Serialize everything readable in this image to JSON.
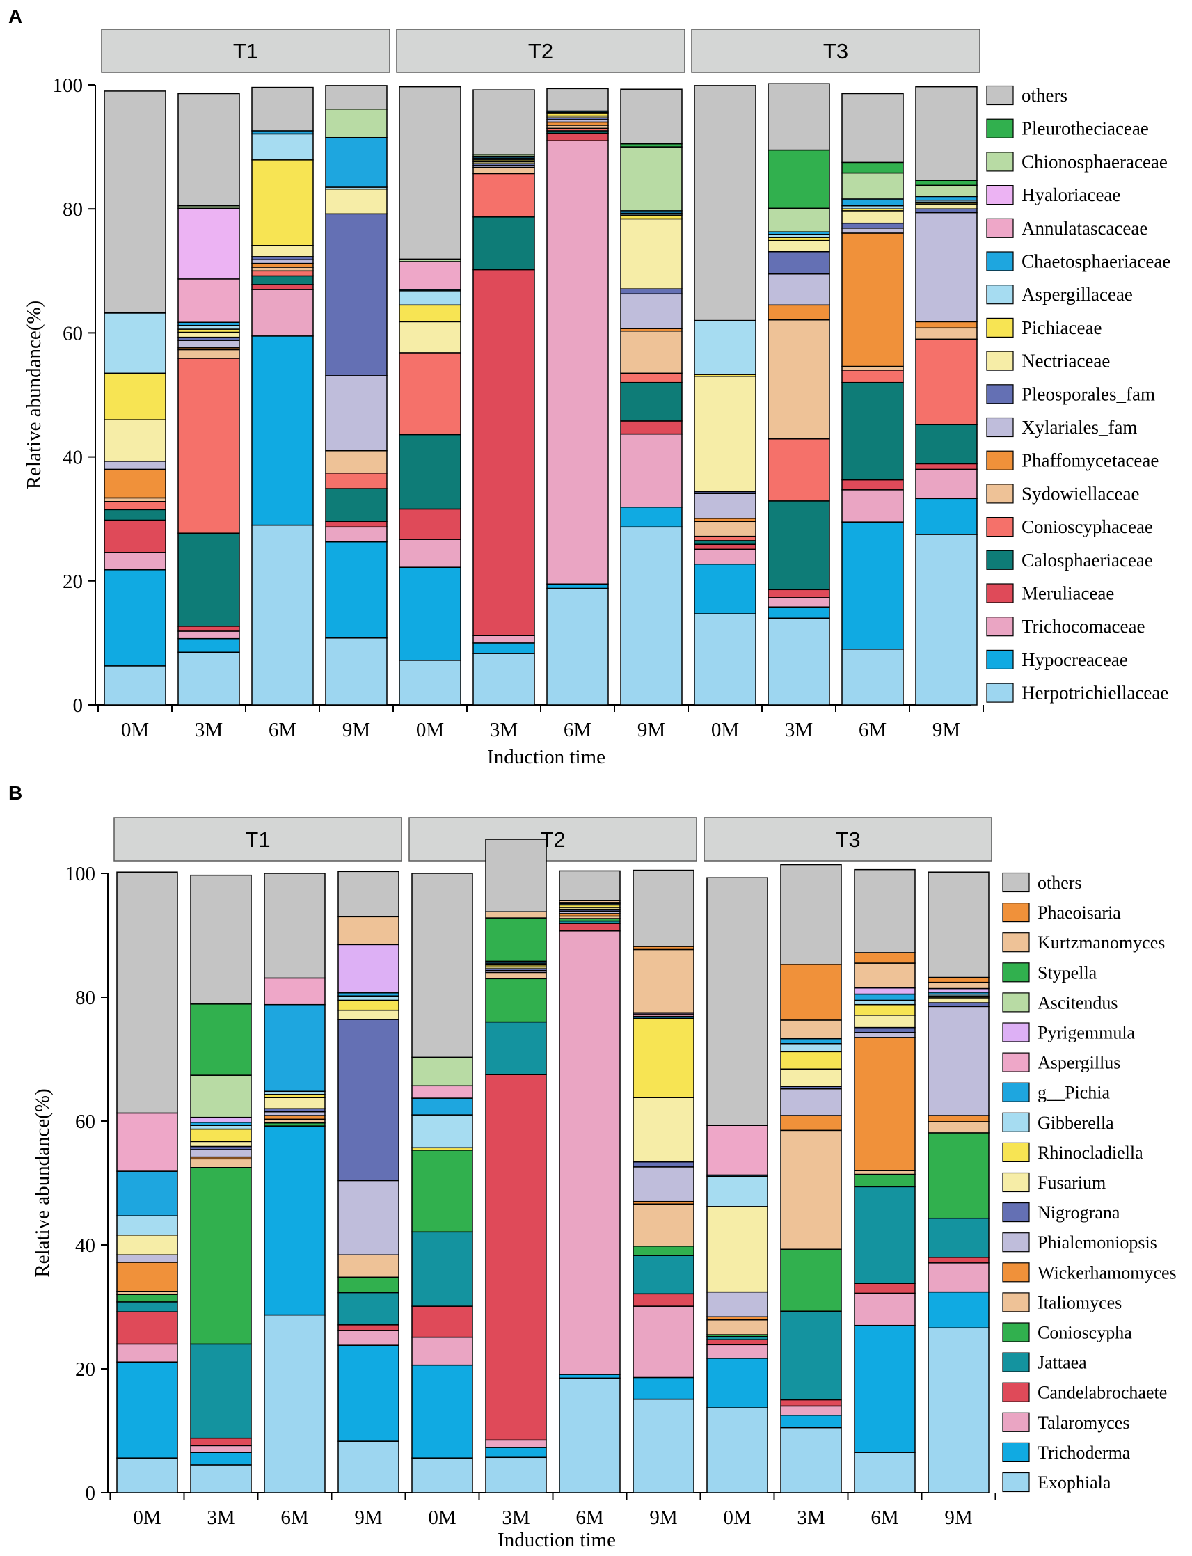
{
  "chart_data": [
    {
      "type": "bar",
      "stacked": true,
      "panel_label": "A",
      "ylabel": "Relative abundance(%)",
      "xlabel": "Induction time",
      "ylim": [
        0,
        100
      ],
      "yticks": [
        "0",
        "20",
        "40",
        "60",
        "80",
        "100"
      ],
      "groups": [
        "T1",
        "T2",
        "T3"
      ],
      "categories": [
        "0M",
        "3M",
        "6M",
        "9M",
        "0M",
        "3M",
        "6M",
        "9M",
        "0M",
        "3M",
        "6M",
        "9M"
      ],
      "legend_position": "right",
      "series": [
        {
          "name": "Herpotrichiellaceae",
          "color": "#9DD6F0",
          "values": [
            6.3,
            8.5,
            29,
            10.8,
            7.2,
            8.3,
            18.8,
            28.7,
            14.7,
            14,
            9,
            27.5
          ]
        },
        {
          "name": "Hypocreaceae",
          "color": "#10AAE2",
          "values": [
            15.5,
            2.2,
            30.5,
            15.5,
            15,
            1.7,
            0.7,
            3.2,
            8,
            1.8,
            20.5,
            5.8
          ]
        },
        {
          "name": "Trichocomaceae",
          "color": "#EAA5C3",
          "values": [
            2.8,
            1.2,
            7.5,
            2.4,
            4.5,
            1.2,
            71.5,
            11.8,
            2.4,
            1.5,
            5.2,
            4.7
          ]
        },
        {
          "name": "Meruliaceae",
          "color": "#DF4A59",
          "values": [
            5.2,
            0.8,
            0.8,
            0.9,
            4.9,
            59,
            1.2,
            2.1,
            0.8,
            1.3,
            1.6,
            0.9
          ]
        },
        {
          "name": "Calosphaeriaceae",
          "color": "#0E7C77",
          "values": [
            1.7,
            15,
            1.4,
            5.3,
            12,
            8.5,
            0.4,
            6.2,
            0.6,
            14.3,
            15.7,
            6.3
          ]
        },
        {
          "name": "Conioscyphaceae",
          "color": "#F5716A",
          "values": [
            1.3,
            28.2,
            0.8,
            2.5,
            13.2,
            7,
            0.4,
            1.5,
            0.7,
            10,
            2,
            13.8
          ]
        },
        {
          "name": "Sydowiellaceae",
          "color": "#EEC297",
          "values": [
            0.6,
            1.4,
            0.6,
            3.6,
            0,
            1,
            0.5,
            6.8,
            2.4,
            19.2,
            0.6,
            1.8
          ]
        },
        {
          "name": "Phaffomycetaceae",
          "color": "#F0913A",
          "values": [
            4.6,
            0.3,
            0.6,
            0,
            0,
            0,
            0.5,
            0.4,
            0.5,
            2.4,
            21.5,
            1
          ]
        },
        {
          "name": "Xylariales_fam",
          "color": "#BFBDDB",
          "values": [
            1.3,
            1.2,
            0.6,
            12.1,
            0,
            0.3,
            0.4,
            5.6,
            4,
            5,
            0.8,
            17.6
          ]
        },
        {
          "name": "Pleosporales_fam",
          "color": "#6470B4",
          "values": [
            0,
            0.5,
            0.5,
            26.1,
            0,
            0.3,
            0.3,
            0.8,
            0.3,
            3.6,
            0.8,
            0.6
          ]
        },
        {
          "name": "Nectriaceae",
          "color": "#F6EDA7",
          "values": [
            6.7,
            0.8,
            1.8,
            4,
            5,
            0.3,
            0.3,
            11.3,
            18.6,
            1.8,
            2,
            0.8
          ]
        },
        {
          "name": "Pichiaceae",
          "color": "#F7E453",
          "values": [
            7.5,
            0.5,
            13.8,
            0,
            2.7,
            0.3,
            0.4,
            0.6,
            0.3,
            0.5,
            0.3,
            0.3
          ]
        },
        {
          "name": "Aspergillaceae",
          "color": "#A6DCF1",
          "values": [
            9.7,
            0.6,
            4.2,
            0.3,
            2.3,
            0.3,
            0.2,
            0.3,
            8.7,
            0.5,
            0.5,
            0.3
          ]
        },
        {
          "name": "Chaetosphaeriaceae",
          "color": "#1EA6DF",
          "values": [
            0.1,
            0.5,
            0.5,
            8,
            0.2,
            0.3,
            0.2,
            0.4,
            0,
            0.4,
            1.1,
            0.6
          ]
        },
        {
          "name": "Annulatascaceae",
          "color": "#EEA7C8",
          "values": [
            0,
            7,
            0,
            0,
            4.5,
            0,
            0,
            0,
            0,
            0,
            0,
            0
          ]
        },
        {
          "name": "Hyaloriaceae",
          "color": "#ECB3F3",
          "values": [
            0,
            11.4,
            0,
            0,
            0,
            0,
            0,
            0,
            0,
            0,
            0,
            0
          ]
        },
        {
          "name": "Chionosphaeraceae",
          "color": "#B8DBA4",
          "values": [
            0,
            0.4,
            0,
            4.6,
            0.4,
            0.3,
            0,
            10.3,
            0,
            3.8,
            4.2,
            1.8
          ]
        },
        {
          "name": "Pleurotheciaceae",
          "color": "#31B04E",
          "values": [
            0,
            0,
            0,
            0,
            0,
            0,
            0,
            0.5,
            0,
            9.4,
            1.7,
            0.8
          ]
        },
        {
          "name": "others",
          "color": "#C4C4C4",
          "values": [
            35.7,
            18.1,
            7,
            3.8,
            27.8,
            10.4,
            3.6,
            8.8,
            37.9,
            10.7,
            11.1,
            15.1
          ]
        }
      ]
    },
    {
      "type": "bar",
      "stacked": true,
      "panel_label": "B",
      "ylabel": "Relative abundance(%)",
      "xlabel": "Induction time",
      "ylim": [
        0,
        100
      ],
      "yticks": [
        "0",
        "20",
        "40",
        "60",
        "80",
        "100"
      ],
      "groups": [
        "T1",
        "T2",
        "T3"
      ],
      "categories": [
        "0M",
        "3M",
        "6M",
        "9M",
        "0M",
        "3M",
        "6M",
        "9M",
        "0M",
        "3M",
        "6M",
        "9M"
      ],
      "legend_position": "right",
      "series": [
        {
          "name": "Exophiala",
          "color": "#9DD6F0",
          "values": [
            5.6,
            4.5,
            28.7,
            8.3,
            5.6,
            5.7,
            18.5,
            15.1,
            13.7,
            10.5,
            6.5,
            26.6
          ]
        },
        {
          "name": "Trichoderma",
          "color": "#10AAE2",
          "values": [
            15.5,
            2,
            30.5,
            15.5,
            15,
            1.6,
            0.6,
            3.5,
            8,
            2,
            20.5,
            5.8
          ]
        },
        {
          "name": "Talaromyces",
          "color": "#EAA5C3",
          "values": [
            2.9,
            1.1,
            0,
            2.4,
            4.5,
            1.2,
            71.6,
            11.5,
            2.2,
            1.5,
            5.2,
            4.7
          ]
        },
        {
          "name": "Candelabrochaete",
          "color": "#DF4A59",
          "values": [
            5.2,
            1.2,
            0,
            0.9,
            5,
            59,
            1.2,
            2,
            0.8,
            1,
            1.6,
            0.9
          ]
        },
        {
          "name": "Jattaea",
          "color": "#14939F",
          "values": [
            1.6,
            15.2,
            0,
            5.2,
            12,
            8.5,
            0.4,
            6.2,
            0.5,
            14.3,
            15.6,
            6.3
          ]
        },
        {
          "name": "Conioscypha",
          "color": "#31B04E",
          "values": [
            1.2,
            28.5,
            0.5,
            2.5,
            13.2,
            7,
            0.4,
            1.5,
            0.3,
            10,
            2,
            13.8
          ]
        },
        {
          "name": "Italiomyces",
          "color": "#EEC297",
          "values": [
            0.5,
            1.4,
            0.6,
            3.6,
            0,
            1,
            0.4,
            6.8,
            2.4,
            19.2,
            0.6,
            1.8
          ]
        },
        {
          "name": "Wickerhamomyces",
          "color": "#F0913A",
          "values": [
            4.7,
            0.3,
            0.6,
            0,
            0,
            0,
            0.4,
            0.4,
            0.5,
            2.4,
            21.5,
            1
          ]
        },
        {
          "name": "Phialemoniopsis",
          "color": "#BFBDDB",
          "values": [
            1.2,
            1.2,
            0.6,
            12,
            0,
            0.3,
            0.4,
            5.6,
            4,
            4.3,
            0.8,
            17.6
          ]
        },
        {
          "name": "Nigrograna",
          "color": "#6470B4",
          "values": [
            0,
            0.5,
            0.5,
            26,
            0,
            0.3,
            0.3,
            0.8,
            0,
            0.4,
            0.8,
            0.6
          ]
        },
        {
          "name": "Fusarium",
          "color": "#F6EDA7",
          "values": [
            3.2,
            0.8,
            1.8,
            1.5,
            0,
            0.3,
            0.3,
            10.4,
            13.8,
            2.8,
            2,
            0.8
          ]
        },
        {
          "name": "Rhinocladiella",
          "color": "#F7E453",
          "values": [
            0,
            2,
            0.5,
            1.6,
            0.4,
            0.3,
            0.4,
            12.8,
            0,
            2.8,
            1.7,
            0.3
          ]
        },
        {
          "name": "Gibberella",
          "color": "#A6DCF1",
          "values": [
            3.1,
            0.6,
            0.5,
            0.7,
            5.3,
            0.3,
            0.2,
            0,
            4.9,
            1.3,
            0.7,
            0.3
          ]
        },
        {
          "name": "g__Pichia",
          "color": "#1EA6DF",
          "values": [
            7.2,
            0.5,
            14,
            0.5,
            2.7,
            0.3,
            0.2,
            0.3,
            0.2,
            0.8,
            1,
            0.3
          ]
        },
        {
          "name": "Aspergillus",
          "color": "#EEA7C8",
          "values": [
            9.4,
            0,
            4.3,
            0,
            2,
            0,
            0,
            0.4,
            8,
            0,
            0,
            0
          ]
        },
        {
          "name": "Pyrigemmula",
          "color": "#DDB0F5",
          "values": [
            0,
            0.8,
            0,
            7.8,
            0,
            0,
            0,
            0.2,
            0,
            0,
            1,
            0.6
          ]
        },
        {
          "name": "Ascitendus",
          "color": "#B8DBA4",
          "values": [
            0,
            6.8,
            0,
            0,
            4.6,
            0,
            0,
            0,
            0,
            0,
            0,
            0
          ]
        },
        {
          "name": "Stypella",
          "color": "#31B04E",
          "values": [
            0,
            11.5,
            0,
            0,
            0,
            7,
            0,
            0,
            0,
            0,
            0,
            0
          ]
        },
        {
          "name": "Kurtzmanomyces",
          "color": "#EEC297",
          "values": [
            0,
            0,
            0,
            4.5,
            0,
            1,
            0.3,
            10.2,
            0,
            3,
            4,
            1
          ]
        },
        {
          "name": "Phaeoisaria",
          "color": "#F0913A",
          "values": [
            0,
            0,
            0,
            0,
            0,
            0,
            0,
            0.5,
            0,
            9,
            1.7,
            0.8
          ]
        },
        {
          "name": "others",
          "color": "#C4C4C4",
          "values": [
            38.9,
            20.8,
            16.9,
            7.3,
            29.7,
            11.7,
            4.8,
            12.3,
            40,
            16.1,
            13.4,
            17
          ]
        }
      ]
    }
  ]
}
